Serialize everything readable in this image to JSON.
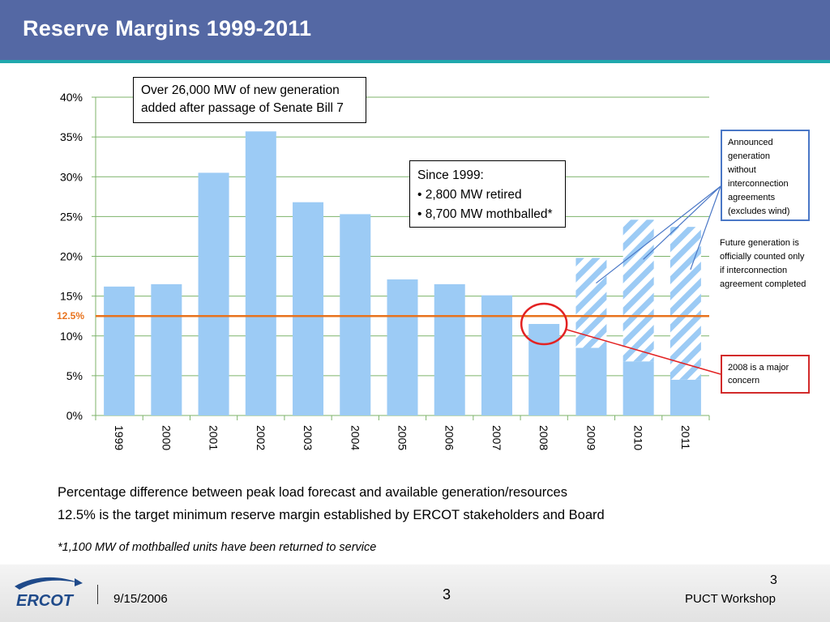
{
  "header": {
    "title": "Reserve Margins 1999-2011"
  },
  "chart_data": {
    "type": "bar",
    "categories": [
      "1999",
      "2000",
      "2001",
      "2002",
      "2003",
      "2004",
      "2005",
      "2006",
      "2007",
      "2008",
      "2009",
      "2010",
      "2011"
    ],
    "series": [
      {
        "values": [
          16.2,
          16.5,
          30.5,
          35.7,
          26.8,
          25.3,
          17.1,
          16.5,
          15.1,
          11.5,
          8.5,
          6.8,
          4.5
        ]
      },
      {
        "name": "Announced generation without interconnection agreements (excludes wind)",
        "values": [
          0,
          0,
          0,
          0,
          0,
          0,
          0,
          0,
          0,
          0,
          11.3,
          17.8,
          19.2
        ]
      }
    ],
    "stacked": true,
    "ylim": [
      0,
      40
    ],
    "yticks": [
      0,
      5,
      10,
      15,
      20,
      25,
      30,
      35,
      40
    ],
    "ytick_labels": [
      "0%",
      "5%",
      "10%",
      "15%",
      "20%",
      "25%",
      "30%",
      "35%",
      "40%"
    ],
    "target_line": {
      "value": 12.5,
      "label": "12.5%",
      "color": "#e8731e"
    },
    "highlight_category": "2008",
    "grid": true,
    "colors": {
      "bar": "#9ccbf5",
      "hatch": "#9ccbf5",
      "grid": "#7cb36a",
      "circle": "#e32222"
    }
  },
  "callouts": {
    "new_generation": [
      "Over 26,000 MW of new generation",
      "added after passage of Senate Bill 7"
    ],
    "since_1999": [
      "Since 1999:",
      "• 2,800 MW retired",
      "• 8,700 MW mothballed*"
    ],
    "announced": [
      "Announced",
      "generation",
      "without",
      "interconnection",
      "agreements",
      "(excludes wind)"
    ],
    "future": [
      "Future generation is",
      "officially counted only",
      "if interconnection",
      "agreement completed"
    ],
    "concern": [
      "2008 is a major",
      "concern"
    ]
  },
  "notes": [
    "Percentage difference between peak load forecast and available generation/resources",
    "12.5% is the target minimum reserve margin established by ERCOT stakeholders and Board"
  ],
  "footnote": "*1,100 MW of mothballed units have been returned to service",
  "footer": {
    "logo_text": "ERCOT",
    "date": "9/15/2006",
    "page_center": "3",
    "page_right": "3",
    "event": "PUCT Workshop"
  }
}
